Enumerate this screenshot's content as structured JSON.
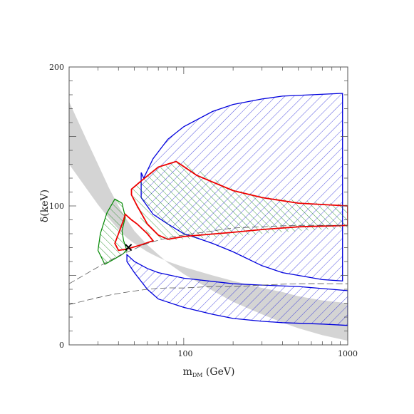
{
  "chart_data": {
    "type": "area",
    "xlabel": "m",
    "xlabel_sub": "DM",
    "xlabel_unit": " (GeV)",
    "ylabel": "δ(keV)",
    "x_scale": "log",
    "xlim": [
      20,
      1000
    ],
    "ylim": [
      0,
      200
    ],
    "x_ticks": [
      {
        "value": 100,
        "label": "100"
      },
      {
        "value": 1000,
        "label": "1000"
      }
    ],
    "y_ticks": [
      {
        "value": 0,
        "label": "0"
      },
      {
        "value": 100,
        "label": "100"
      },
      {
        "value": 200,
        "label": "200"
      }
    ],
    "colors": {
      "gray": "#d4d4d4",
      "blue": "#0000dd",
      "red": "#ee0000",
      "green": "#008800",
      "dashed": "#555555"
    },
    "gray_band": [
      [
        20,
        175
      ],
      [
        25,
        150
      ],
      [
        30,
        130
      ],
      [
        35,
        113
      ],
      [
        40,
        100
      ],
      [
        45,
        90
      ],
      [
        50,
        82
      ],
      [
        60,
        72
      ],
      [
        70,
        65
      ],
      [
        80,
        59
      ],
      [
        100,
        51
      ],
      [
        150,
        39
      ],
      [
        200,
        31
      ],
      [
        300,
        22
      ],
      [
        400,
        16
      ],
      [
        500,
        12
      ],
      [
        700,
        7
      ],
      [
        1000,
        3
      ],
      [
        1000,
        30
      ],
      [
        700,
        32
      ],
      [
        500,
        35
      ],
      [
        400,
        38
      ],
      [
        300,
        41
      ],
      [
        200,
        46
      ],
      [
        150,
        50
      ],
      [
        100,
        56
      ],
      [
        80,
        60
      ],
      [
        70,
        63
      ],
      [
        60,
        67
      ],
      [
        50,
        73
      ],
      [
        45,
        77
      ],
      [
        40,
        83
      ],
      [
        35,
        91
      ],
      [
        30,
        101
      ],
      [
        25,
        114
      ],
      [
        20,
        130
      ]
    ],
    "blue_upper": [
      [
        55,
        124
      ],
      [
        57,
        120
      ],
      [
        65,
        134
      ],
      [
        80,
        148
      ],
      [
        100,
        157
      ],
      [
        150,
        168
      ],
      [
        200,
        173
      ],
      [
        300,
        177
      ],
      [
        400,
        179
      ],
      [
        600,
        180
      ],
      [
        900,
        181
      ],
      [
        930,
        181
      ],
      [
        930,
        46
      ],
      [
        700,
        47
      ],
      [
        500,
        50
      ],
      [
        400,
        52
      ],
      [
        300,
        57
      ],
      [
        200,
        67
      ],
      [
        150,
        73
      ],
      [
        120,
        77
      ],
      [
        100,
        80
      ],
      [
        80,
        87
      ],
      [
        65,
        94
      ],
      [
        55,
        106
      ]
    ],
    "blue_lower": [
      [
        45,
        65
      ],
      [
        50,
        60
      ],
      [
        60,
        55
      ],
      [
        70,
        52
      ],
      [
        100,
        48
      ],
      [
        200,
        44
      ],
      [
        300,
        43
      ],
      [
        500,
        42
      ],
      [
        1000,
        39
      ],
      [
        1000,
        14
      ],
      [
        700,
        15
      ],
      [
        400,
        16
      ],
      [
        300,
        17
      ],
      [
        200,
        19
      ],
      [
        150,
        22
      ],
      [
        100,
        27
      ],
      [
        70,
        33
      ],
      [
        60,
        40
      ],
      [
        50,
        52
      ],
      [
        45,
        60
      ]
    ],
    "red_region1": [
      [
        38,
        73
      ],
      [
        40,
        68
      ],
      [
        45,
        69
      ],
      [
        55,
        72
      ],
      [
        65,
        75
      ],
      [
        60,
        80
      ],
      [
        52,
        87
      ],
      [
        48,
        90
      ],
      [
        44,
        94
      ],
      [
        43,
        90
      ],
      [
        40,
        80
      ]
    ],
    "red_region2": [
      [
        48,
        112
      ],
      [
        55,
        118
      ],
      [
        70,
        128
      ],
      [
        90,
        132
      ],
      [
        120,
        122
      ],
      [
        200,
        111
      ],
      [
        300,
        106
      ],
      [
        500,
        102
      ],
      [
        1000,
        100
      ],
      [
        1000,
        86
      ],
      [
        500,
        85
      ],
      [
        300,
        83
      ],
      [
        200,
        81
      ],
      [
        100,
        78
      ],
      [
        80,
        76
      ],
      [
        70,
        79
      ],
      [
        60,
        87
      ],
      [
        52,
        100
      ],
      [
        48,
        108
      ]
    ],
    "green_region": [
      [
        30,
        68
      ],
      [
        33,
        58
      ],
      [
        38,
        62
      ],
      [
        42,
        65
      ],
      [
        45,
        68
      ],
      [
        43,
        75
      ],
      [
        42,
        82
      ],
      [
        44,
        92
      ],
      [
        42,
        102
      ],
      [
        38,
        105
      ],
      [
        34,
        95
      ],
      [
        31,
        80
      ]
    ],
    "green_region2": [
      [
        48,
        112
      ],
      [
        58,
        120
      ],
      [
        70,
        127
      ],
      [
        95,
        133
      ],
      [
        120,
        126
      ],
      [
        200,
        112
      ],
      [
        300,
        107
      ],
      [
        500,
        104
      ],
      [
        1000,
        101
      ],
      [
        1000,
        84
      ],
      [
        500,
        82
      ],
      [
        300,
        80
      ],
      [
        200,
        78
      ],
      [
        100,
        76
      ],
      [
        80,
        75
      ],
      [
        70,
        77
      ],
      [
        60,
        80
      ],
      [
        55,
        90
      ],
      [
        50,
        104
      ]
    ],
    "dashed_upper": [
      [
        20,
        44
      ],
      [
        30,
        56
      ],
      [
        40,
        64
      ],
      [
        50,
        69
      ],
      [
        60,
        73
      ],
      [
        80,
        77
      ],
      [
        100,
        79
      ],
      [
        150,
        82
      ],
      [
        200,
        84
      ],
      [
        300,
        85
      ],
      [
        500,
        86
      ],
      [
        1000,
        86
      ]
    ],
    "dashed_lower": [
      [
        20,
        29
      ],
      [
        30,
        34
      ],
      [
        40,
        37
      ],
      [
        60,
        40
      ],
      [
        80,
        41
      ],
      [
        100,
        41
      ],
      [
        150,
        42
      ],
      [
        200,
        42
      ],
      [
        300,
        43
      ],
      [
        500,
        44
      ],
      [
        1000,
        44
      ]
    ],
    "best_fit": {
      "x": 46,
      "y": 70,
      "marker": "×"
    }
  }
}
